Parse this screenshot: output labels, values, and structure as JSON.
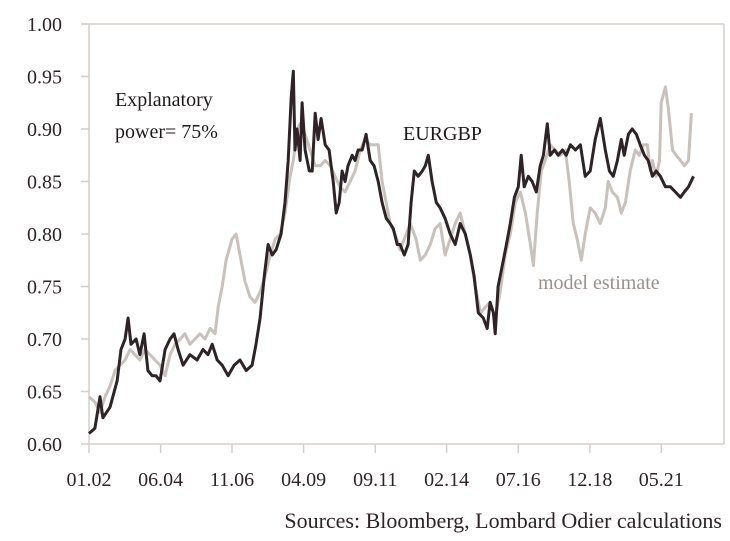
{
  "chart_data": {
    "type": "line",
    "title": "",
    "xlabel": "",
    "ylabel": "",
    "ylim": [
      0.6,
      1.0
    ],
    "xlim": [
      2002.0,
      2023.45
    ],
    "yticks": [
      "0.60",
      "0.65",
      "0.70",
      "0.75",
      "0.80",
      "0.85",
      "0.90",
      "0.95",
      "1.00"
    ],
    "ytick_values": [
      0.6,
      0.65,
      0.7,
      0.75,
      0.8,
      0.85,
      0.9,
      0.95,
      1.0
    ],
    "xticks": [
      "01.02",
      "06.04",
      "11.06",
      "04.09",
      "09.11",
      "02.14",
      "07.16",
      "12.18",
      "05.21"
    ],
    "xtick_values": [
      2002.0,
      2004.42,
      2006.83,
      2009.25,
      2011.67,
      2014.08,
      2016.5,
      2018.92,
      2021.33
    ],
    "grid": false,
    "annotation": {
      "line1": "Explanatory",
      "line2": "power= 75%"
    },
    "source": "Sources: Bloomberg, Lombard Odier calculations",
    "series": [
      {
        "name": "model estimate",
        "color": "#c9c1bb",
        "points": [
          [
            2002.0,
            0.645
          ],
          [
            2002.2,
            0.64
          ],
          [
            2002.37,
            0.63
          ],
          [
            2002.54,
            0.645
          ],
          [
            2002.71,
            0.655
          ],
          [
            2002.88,
            0.67
          ],
          [
            2003.05,
            0.675
          ],
          [
            2003.22,
            0.68
          ],
          [
            2003.39,
            0.69
          ],
          [
            2003.55,
            0.685
          ],
          [
            2003.72,
            0.68
          ],
          [
            2003.89,
            0.69
          ],
          [
            2004.06,
            0.685
          ],
          [
            2004.23,
            0.68
          ],
          [
            2004.4,
            0.675
          ],
          [
            2004.57,
            0.665
          ],
          [
            2004.74,
            0.685
          ],
          [
            2004.91,
            0.695
          ],
          [
            2005.08,
            0.7
          ],
          [
            2005.24,
            0.705
          ],
          [
            2005.41,
            0.695
          ],
          [
            2005.58,
            0.7
          ],
          [
            2005.75,
            0.705
          ],
          [
            2005.92,
            0.7
          ],
          [
            2006.09,
            0.71
          ],
          [
            2006.26,
            0.705
          ],
          [
            2006.36,
            0.73
          ],
          [
            2006.5,
            0.75
          ],
          [
            2006.63,
            0.775
          ],
          [
            2006.83,
            0.795
          ],
          [
            2006.97,
            0.8
          ],
          [
            2007.1,
            0.78
          ],
          [
            2007.27,
            0.755
          ],
          [
            2007.44,
            0.74
          ],
          [
            2007.61,
            0.735
          ],
          [
            2007.78,
            0.745
          ],
          [
            2007.95,
            0.76
          ],
          [
            2008.12,
            0.78
          ],
          [
            2008.29,
            0.795
          ],
          [
            2008.46,
            0.8
          ],
          [
            2008.62,
            0.82
          ],
          [
            2008.79,
            0.855
          ],
          [
            2008.9,
            0.87
          ],
          [
            2009.03,
            0.9
          ],
          [
            2009.13,
            0.905
          ],
          [
            2009.3,
            0.895
          ],
          [
            2009.47,
            0.88
          ],
          [
            2009.64,
            0.865
          ],
          [
            2009.81,
            0.865
          ],
          [
            2009.98,
            0.87
          ],
          [
            2010.15,
            0.865
          ],
          [
            2010.31,
            0.855
          ],
          [
            2010.48,
            0.845
          ],
          [
            2010.65,
            0.84
          ],
          [
            2010.82,
            0.85
          ],
          [
            2010.99,
            0.86
          ],
          [
            2011.16,
            0.88
          ],
          [
            2011.33,
            0.89
          ],
          [
            2011.5,
            0.885
          ],
          [
            2011.67,
            0.885
          ],
          [
            2011.77,
            0.885
          ],
          [
            2011.9,
            0.85
          ],
          [
            2012.04,
            0.83
          ],
          [
            2012.17,
            0.81
          ],
          [
            2012.34,
            0.8
          ],
          [
            2012.51,
            0.785
          ],
          [
            2012.65,
            0.795
          ],
          [
            2012.85,
            0.81
          ],
          [
            2013.05,
            0.795
          ],
          [
            2013.19,
            0.775
          ],
          [
            2013.36,
            0.78
          ],
          [
            2013.53,
            0.79
          ],
          [
            2013.69,
            0.805
          ],
          [
            2013.86,
            0.81
          ],
          [
            2014.03,
            0.78
          ],
          [
            2014.2,
            0.795
          ],
          [
            2014.37,
            0.81
          ],
          [
            2014.54,
            0.82
          ],
          [
            2014.71,
            0.8
          ],
          [
            2014.88,
            0.78
          ],
          [
            2015.05,
            0.75
          ],
          [
            2015.22,
            0.725
          ],
          [
            2015.38,
            0.73
          ],
          [
            2015.55,
            0.735
          ],
          [
            2015.72,
            0.72
          ],
          [
            2015.89,
            0.745
          ],
          [
            2016.06,
            0.78
          ],
          [
            2016.23,
            0.8
          ],
          [
            2016.4,
            0.83
          ],
          [
            2016.57,
            0.84
          ],
          [
            2016.74,
            0.82
          ],
          [
            2016.91,
            0.79
          ],
          [
            2017.01,
            0.77
          ],
          [
            2017.14,
            0.82
          ],
          [
            2017.28,
            0.86
          ],
          [
            2017.41,
            0.87
          ],
          [
            2017.58,
            0.885
          ],
          [
            2017.75,
            0.88
          ],
          [
            2017.92,
            0.875
          ],
          [
            2018.09,
            0.88
          ],
          [
            2018.22,
            0.85
          ],
          [
            2018.36,
            0.81
          ],
          [
            2018.49,
            0.795
          ],
          [
            2018.63,
            0.775
          ],
          [
            2018.76,
            0.8
          ],
          [
            2018.93,
            0.825
          ],
          [
            2019.1,
            0.82
          ],
          [
            2019.27,
            0.81
          ],
          [
            2019.44,
            0.825
          ],
          [
            2019.54,
            0.85
          ],
          [
            2019.68,
            0.84
          ],
          [
            2019.85,
            0.835
          ],
          [
            2019.98,
            0.82
          ],
          [
            2020.12,
            0.83
          ],
          [
            2020.28,
            0.86
          ],
          [
            2020.45,
            0.88
          ],
          [
            2020.59,
            0.875
          ],
          [
            2020.72,
            0.885
          ],
          [
            2020.86,
            0.885
          ],
          [
            2020.96,
            0.86
          ],
          [
            2021.03,
            0.87
          ],
          [
            2021.16,
            0.855
          ],
          [
            2021.27,
            0.87
          ],
          [
            2021.33,
            0.925
          ],
          [
            2021.47,
            0.94
          ],
          [
            2021.57,
            0.92
          ],
          [
            2021.71,
            0.88
          ],
          [
            2021.84,
            0.875
          ],
          [
            2021.98,
            0.87
          ],
          [
            2022.11,
            0.865
          ],
          [
            2022.25,
            0.87
          ],
          [
            2022.35,
            0.915
          ]
        ]
      },
      {
        "name": "EURGBP",
        "color": "#2e2326",
        "points": [
          [
            2002.0,
            0.61
          ],
          [
            2002.2,
            0.615
          ],
          [
            2002.37,
            0.645
          ],
          [
            2002.47,
            0.625
          ],
          [
            2002.71,
            0.635
          ],
          [
            2002.95,
            0.66
          ],
          [
            2003.08,
            0.69
          ],
          [
            2003.22,
            0.7
          ],
          [
            2003.32,
            0.72
          ],
          [
            2003.42,
            0.695
          ],
          [
            2003.59,
            0.7
          ],
          [
            2003.72,
            0.685
          ],
          [
            2003.86,
            0.705
          ],
          [
            2003.99,
            0.67
          ],
          [
            2004.13,
            0.665
          ],
          [
            2004.26,
            0.665
          ],
          [
            2004.4,
            0.66
          ],
          [
            2004.57,
            0.69
          ],
          [
            2004.74,
            0.7
          ],
          [
            2004.87,
            0.705
          ],
          [
            2005.01,
            0.69
          ],
          [
            2005.18,
            0.675
          ],
          [
            2005.41,
            0.685
          ],
          [
            2005.65,
            0.68
          ],
          [
            2005.85,
            0.69
          ],
          [
            2006.02,
            0.685
          ],
          [
            2006.16,
            0.695
          ],
          [
            2006.33,
            0.68
          ],
          [
            2006.5,
            0.675
          ],
          [
            2006.7,
            0.665
          ],
          [
            2006.9,
            0.675
          ],
          [
            2007.1,
            0.68
          ],
          [
            2007.31,
            0.67
          ],
          [
            2007.51,
            0.675
          ],
          [
            2007.64,
            0.695
          ],
          [
            2007.78,
            0.72
          ],
          [
            2007.92,
            0.76
          ],
          [
            2008.05,
            0.79
          ],
          [
            2008.19,
            0.78
          ],
          [
            2008.32,
            0.785
          ],
          [
            2008.49,
            0.8
          ],
          [
            2008.62,
            0.83
          ],
          [
            2008.73,
            0.87
          ],
          [
            2008.83,
            0.93
          ],
          [
            2008.9,
            0.955
          ],
          [
            2008.96,
            0.88
          ],
          [
            2009.03,
            0.9
          ],
          [
            2009.13,
            0.87
          ],
          [
            2009.2,
            0.925
          ],
          [
            2009.3,
            0.88
          ],
          [
            2009.44,
            0.86
          ],
          [
            2009.54,
            0.86
          ],
          [
            2009.64,
            0.915
          ],
          [
            2009.74,
            0.89
          ],
          [
            2009.84,
            0.91
          ],
          [
            2009.98,
            0.885
          ],
          [
            2010.11,
            0.88
          ],
          [
            2010.25,
            0.85
          ],
          [
            2010.35,
            0.82
          ],
          [
            2010.45,
            0.83
          ],
          [
            2010.55,
            0.86
          ],
          [
            2010.65,
            0.85
          ],
          [
            2010.75,
            0.865
          ],
          [
            2010.89,
            0.875
          ],
          [
            2010.99,
            0.87
          ],
          [
            2011.09,
            0.88
          ],
          [
            2011.23,
            0.88
          ],
          [
            2011.36,
            0.895
          ],
          [
            2011.5,
            0.87
          ],
          [
            2011.63,
            0.865
          ],
          [
            2011.77,
            0.85
          ],
          [
            2011.9,
            0.83
          ],
          [
            2012.04,
            0.815
          ],
          [
            2012.17,
            0.81
          ],
          [
            2012.28,
            0.805
          ],
          [
            2012.41,
            0.79
          ],
          [
            2012.51,
            0.79
          ],
          [
            2012.65,
            0.78
          ],
          [
            2012.78,
            0.79
          ],
          [
            2012.88,
            0.83
          ],
          [
            2012.99,
            0.86
          ],
          [
            2013.12,
            0.855
          ],
          [
            2013.26,
            0.86
          ],
          [
            2013.36,
            0.865
          ],
          [
            2013.46,
            0.875
          ],
          [
            2013.59,
            0.85
          ],
          [
            2013.73,
            0.83
          ],
          [
            2013.86,
            0.825
          ],
          [
            2014.03,
            0.815
          ],
          [
            2014.2,
            0.8
          ],
          [
            2014.37,
            0.79
          ],
          [
            2014.54,
            0.81
          ],
          [
            2014.71,
            0.8
          ],
          [
            2014.88,
            0.78
          ],
          [
            2015.01,
            0.76
          ],
          [
            2015.15,
            0.725
          ],
          [
            2015.32,
            0.72
          ],
          [
            2015.45,
            0.71
          ],
          [
            2015.55,
            0.735
          ],
          [
            2015.66,
            0.725
          ],
          [
            2015.72,
            0.705
          ],
          [
            2015.82,
            0.75
          ],
          [
            2015.96,
            0.77
          ],
          [
            2016.1,
            0.79
          ],
          [
            2016.23,
            0.81
          ],
          [
            2016.37,
            0.835
          ],
          [
            2016.5,
            0.845
          ],
          [
            2016.6,
            0.875
          ],
          [
            2016.7,
            0.845
          ],
          [
            2016.84,
            0.855
          ],
          [
            2016.97,
            0.85
          ],
          [
            2017.11,
            0.84
          ],
          [
            2017.24,
            0.865
          ],
          [
            2017.35,
            0.875
          ],
          [
            2017.48,
            0.905
          ],
          [
            2017.58,
            0.875
          ],
          [
            2017.72,
            0.88
          ],
          [
            2017.85,
            0.875
          ],
          [
            2017.99,
            0.88
          ],
          [
            2018.12,
            0.875
          ],
          [
            2018.26,
            0.885
          ],
          [
            2018.43,
            0.88
          ],
          [
            2018.6,
            0.885
          ],
          [
            2018.76,
            0.855
          ],
          [
            2018.93,
            0.86
          ],
          [
            2019.1,
            0.89
          ],
          [
            2019.27,
            0.91
          ],
          [
            2019.44,
            0.88
          ],
          [
            2019.58,
            0.86
          ],
          [
            2019.71,
            0.855
          ],
          [
            2019.85,
            0.87
          ],
          [
            2019.98,
            0.89
          ],
          [
            2020.08,
            0.875
          ],
          [
            2020.22,
            0.895
          ],
          [
            2020.35,
            0.9
          ],
          [
            2020.49,
            0.895
          ],
          [
            2020.62,
            0.885
          ],
          [
            2020.76,
            0.875
          ],
          [
            2020.89,
            0.87
          ],
          [
            2021.03,
            0.855
          ],
          [
            2021.16,
            0.86
          ],
          [
            2021.3,
            0.855
          ],
          [
            2021.47,
            0.845
          ],
          [
            2021.64,
            0.845
          ],
          [
            2021.81,
            0.84
          ],
          [
            2021.98,
            0.835
          ],
          [
            2022.11,
            0.84
          ],
          [
            2022.25,
            0.845
          ],
          [
            2022.42,
            0.855
          ]
        ]
      }
    ]
  }
}
